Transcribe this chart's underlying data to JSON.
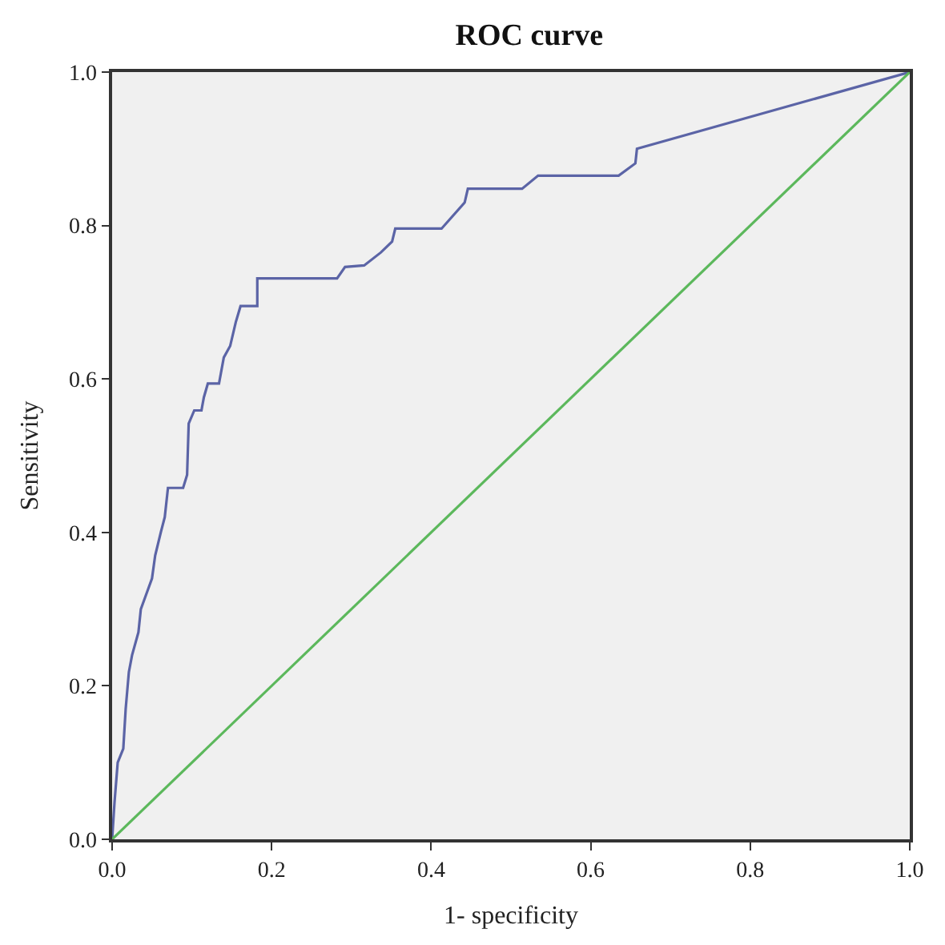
{
  "chart_data": {
    "type": "line",
    "title": "ROC curve",
    "xlabel": "1- specificity",
    "ylabel": "Sensitivity",
    "xlim": [
      0,
      1
    ],
    "ylim": [
      0,
      1
    ],
    "xticks": [
      {
        "value": 0,
        "label": "0.0"
      },
      0.2,
      0.4,
      0.6,
      0.8,
      {
        "value": 1,
        "label": "1.0"
      }
    ],
    "yticks": [
      {
        "value": 0,
        "label": "0.0"
      },
      0.2,
      0.4,
      0.6,
      0.8,
      {
        "value": 1,
        "label": "1.0"
      }
    ],
    "grid": false,
    "marker": "none",
    "line_style": "solid",
    "series": [
      {
        "color": "#5b64a6",
        "x": [
          0,
          0.003,
          0.007,
          0.014,
          0.017,
          0.021,
          0.025,
          0.033,
          0.036,
          0.043,
          0.05,
          0.054,
          0.061,
          0.066,
          0.07,
          0.089,
          0.094,
          0.096,
          0.103,
          0.112,
          0.115,
          0.12,
          0.134,
          0.14,
          0.148,
          0.155,
          0.161,
          0.182,
          0.182,
          0.282,
          0.292,
          0.316,
          0.337,
          0.351,
          0.355,
          0.413,
          0.442,
          0.446,
          0.514,
          0.534,
          0.635,
          0.656,
          0.658,
          1
        ],
        "values": [
          0,
          0.048,
          0.1,
          0.118,
          0.17,
          0.218,
          0.24,
          0.27,
          0.3,
          0.32,
          0.34,
          0.37,
          0.4,
          0.42,
          0.458,
          0.458,
          0.475,
          0.542,
          0.559,
          0.559,
          0.576,
          0.594,
          0.594,
          0.628,
          0.643,
          0.674,
          0.695,
          0.695,
          0.731,
          0.731,
          0.746,
          0.748,
          0.765,
          0.779,
          0.796,
          0.796,
          0.83,
          0.848,
          0.848,
          0.865,
          0.865,
          0.881,
          0.9,
          1
        ]
      },
      {
        "color": "#5cb85c",
        "x": [
          0,
          1
        ],
        "values": [
          0,
          1
        ]
      }
    ]
  }
}
